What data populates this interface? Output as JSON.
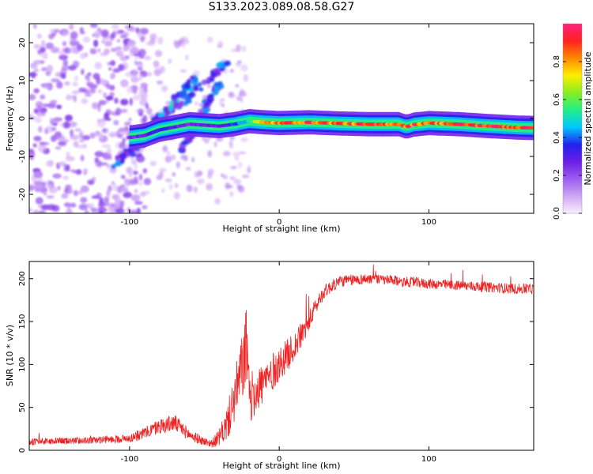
{
  "figure_title": "S133.2023.089.08.58.G27",
  "colors": {
    "snr_line": "#ee2222",
    "axis": "#000000",
    "colormap": [
      "#f6f0ff",
      "#cfa6f5",
      "#9d5cf0",
      "#6a1ee6",
      "#2222ee",
      "#00c8ff",
      "#22ee88",
      "#88ee22",
      "#ffee00",
      "#ff8800",
      "#ff2222",
      "#ff1f7f"
    ]
  },
  "chart_data": [
    {
      "type": "heatmap",
      "title": "",
      "xlabel": "Height of straight line (km)",
      "ylabel": "Frequency (Hz)",
      "xlim": [
        -167,
        170
      ],
      "ylim": [
        -25,
        25
      ],
      "xticks": [
        -100,
        0,
        100
      ],
      "xtick_labels": [
        "-100",
        "0",
        "100"
      ],
      "yticks": [
        -20,
        -10,
        0,
        10,
        20
      ],
      "ytick_labels": [
        "-20",
        "-10",
        "0",
        "10",
        "20"
      ],
      "colorbar": {
        "label": "Normalized spectral amplitude",
        "range": [
          0.0,
          1.0
        ],
        "ticks": [
          0.0,
          0.2,
          0.4,
          0.6,
          0.8
        ],
        "tick_labels": [
          "0.0",
          "0.2",
          "0.4",
          "0.6",
          "0.8"
        ]
      },
      "ridge": {
        "description": "main frequency ridge",
        "x": [
          -100,
          -90,
          -80,
          -60,
          -40,
          -30,
          -20,
          -10,
          0,
          20,
          40,
          60,
          80,
          85,
          90,
          100,
          120,
          140,
          160,
          170
        ],
        "freq": [
          -5,
          -4.5,
          -3,
          -1.5,
          -2,
          -1.5,
          -0.7,
          -1,
          -1.2,
          -1,
          -1.3,
          -1.5,
          -1.5,
          -2.2,
          -1.6,
          -1.2,
          -1.5,
          -2,
          -2.4,
          -2.5
        ],
        "amplitude": [
          0.25,
          0.3,
          0.35,
          0.25,
          0.3,
          0.35,
          0.55,
          0.75,
          0.85,
          0.9,
          0.85,
          0.85,
          0.88,
          0.9,
          0.88,
          0.85,
          0.88,
          0.92,
          0.9,
          0.85
        ]
      },
      "streaks": [
        {
          "x": [
            -110,
            -35
          ],
          "freq": [
            -12,
            15
          ],
          "amplitude": 0.3
        },
        {
          "x": [
            -100,
            -55
          ],
          "freq": [
            -9,
            11
          ],
          "amplitude": 0.35
        },
        {
          "x": [
            -65,
            -40
          ],
          "freq": [
            -8,
            9
          ],
          "amplitude": 0.3
        }
      ],
      "noise_region": {
        "x": [
          -167,
          -100
        ],
        "freq": [
          -25,
          25
        ],
        "amplitude": 0.15
      }
    },
    {
      "type": "line",
      "title": "",
      "xlabel": "Height of straight line (km)",
      "ylabel": "SNR (10 * v/v)",
      "xlim": [
        -167,
        170
      ],
      "ylim": [
        0,
        220
      ],
      "xticks": [
        -100,
        0,
        100
      ],
      "xtick_labels": [
        "-100",
        "0",
        "100"
      ],
      "yticks": [
        0,
        50,
        100,
        150,
        200
      ],
      "ytick_labels": [
        "0",
        "50",
        "100",
        "150",
        "200"
      ],
      "series": [
        {
          "name": "SNR",
          "color": "#ee2222",
          "x": [
            -167,
            -140,
            -120,
            -100,
            -90,
            -80,
            -70,
            -60,
            -50,
            -45,
            -40,
            -35,
            -30,
            -25,
            -22,
            -20,
            -15,
            -10,
            -5,
            0,
            5,
            10,
            15,
            20,
            25,
            30,
            40,
            60,
            80,
            100,
            120,
            140,
            160,
            170
          ],
          "y": [
            10,
            11,
            12,
            14,
            20,
            28,
            32,
            18,
            10,
            8,
            15,
            30,
            60,
            95,
            120,
            60,
            70,
            80,
            90,
            100,
            110,
            120,
            135,
            150,
            170,
            185,
            197,
            200,
            197,
            194,
            192,
            190,
            188,
            188
          ],
          "noise_amplitude": [
            8,
            8,
            8,
            10,
            14,
            18,
            20,
            14,
            10,
            10,
            20,
            40,
            60,
            80,
            100,
            60,
            55,
            50,
            45,
            40,
            38,
            35,
            30,
            25,
            20,
            16,
            14,
            12,
            12,
            12,
            12,
            12,
            12,
            12
          ]
        }
      ]
    }
  ]
}
